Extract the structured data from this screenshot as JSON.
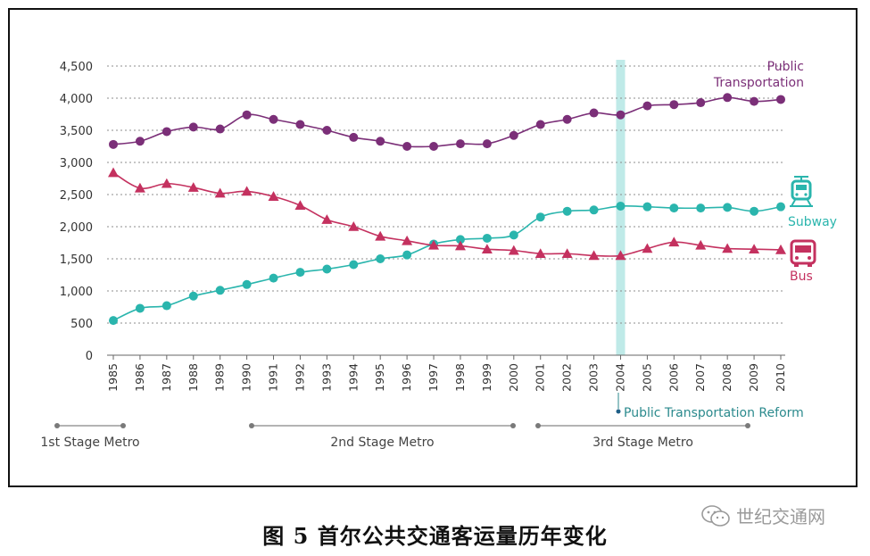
{
  "chart_data": {
    "type": "line",
    "title": "",
    "xlabel": "",
    "ylabel": "",
    "ylim": [
      0,
      4500
    ],
    "yticks": [
      0,
      500,
      1000,
      1500,
      2000,
      2500,
      3000,
      3500,
      4000,
      4500
    ],
    "ytick_labels": [
      "0",
      "500",
      "1,000",
      "1,500",
      "2,000",
      "2,500",
      "3,000",
      "3,500",
      "4,000",
      "4,500"
    ],
    "x": [
      "1985",
      "1986",
      "1987",
      "1988",
      "1989",
      "1990",
      "1991",
      "1992",
      "1993",
      "1994",
      "1995",
      "1996",
      "1997",
      "1998",
      "1999",
      "2000",
      "2001",
      "2002",
      "2003",
      "2004",
      "2005",
      "2006",
      "2007",
      "2008",
      "2009",
      "2010"
    ],
    "grid": "horizontal dotted",
    "series": [
      {
        "name": "Public Transportation",
        "label_lines": [
          "Public",
          "Transportation"
        ],
        "color": "#7b2f78",
        "marker": "circle",
        "values": [
          3280,
          3330,
          3480,
          3550,
          3520,
          3740,
          3670,
          3590,
          3500,
          3390,
          3330,
          3250,
          3250,
          3290,
          3290,
          3420,
          3590,
          3670,
          3770,
          3740,
          3880,
          3900,
          3930,
          4010,
          3950,
          3980
        ]
      },
      {
        "name": "Subway",
        "label_lines": [
          "Subway"
        ],
        "color": "#2ab5ad",
        "marker": "circle",
        "values": [
          540,
          730,
          770,
          920,
          1010,
          1100,
          1200,
          1290,
          1340,
          1410,
          1500,
          1560,
          1730,
          1800,
          1820,
          1870,
          2150,
          2240,
          2260,
          2320,
          2310,
          2290,
          2290,
          2300,
          2240,
          2310
        ]
      },
      {
        "name": "Bus",
        "label_lines": [
          "Bus"
        ],
        "color": "#c4315f",
        "marker": "triangle",
        "values": [
          2840,
          2600,
          2670,
          2610,
          2520,
          2550,
          2470,
          2330,
          2110,
          2000,
          1850,
          1780,
          1710,
          1700,
          1650,
          1630,
          1580,
          1580,
          1550,
          1550,
          1660,
          1760,
          1710,
          1660,
          1650,
          1640
        ]
      }
    ],
    "highlight": {
      "year": "2004",
      "label": "Public Transportation Reform",
      "color": "#bfeae8"
    },
    "stages": [
      {
        "label": "1st Stage Metro",
        "from": "1985",
        "to": "1986"
      },
      {
        "label": "2nd Stage Metro",
        "from": "1990",
        "to": "2000"
      },
      {
        "label": "3rd Stage Metro",
        "from": "2001",
        "to": "2009"
      }
    ]
  },
  "icons": {
    "subway": "subway-train-icon",
    "bus": "bus-icon",
    "watermark": "wechat-icon"
  },
  "caption": {
    "text": "图 5  首尔公共交通客运量历年变化"
  },
  "watermark": {
    "text": "世纪交通网"
  }
}
